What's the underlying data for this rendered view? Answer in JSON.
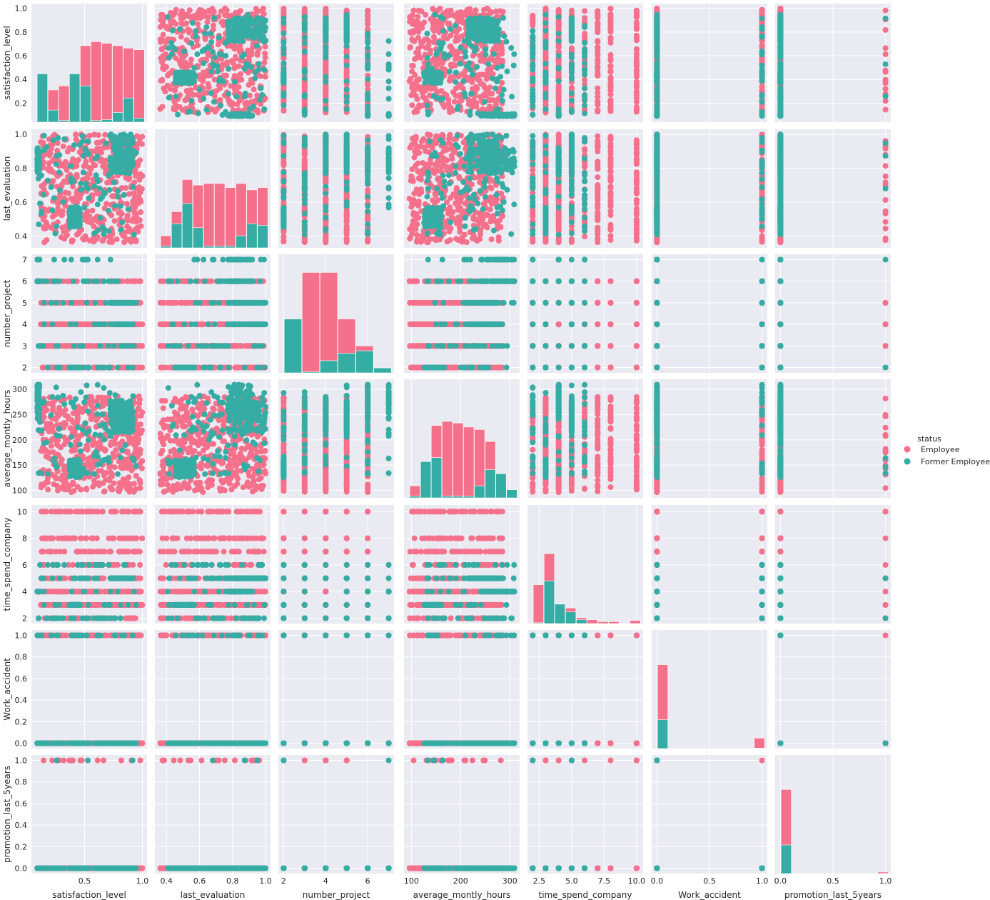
{
  "chart_data": {
    "type": "scatter",
    "kind": "pairplot",
    "title": "",
    "hue_variable": "status",
    "variables": [
      {
        "name": "satisfaction_level",
        "range": [
          0.04,
          1.04
        ],
        "ticks_x": [
          0.5,
          1.0
        ],
        "tick_labels_x": [
          "0.5",
          "1.0"
        ],
        "ticks_y": [
          0.2,
          0.4,
          0.6,
          0.8,
          1.0
        ],
        "tick_labels_y": [
          "0.2",
          "0.4",
          "0.6",
          "0.8",
          "1.0"
        ],
        "discrete": false
      },
      {
        "name": "last_evaluation",
        "range": [
          0.33,
          1.03
        ],
        "ticks_x": [
          0.4,
          0.6,
          0.8,
          1.0
        ],
        "tick_labels_x": [
          "0.4",
          "0.6",
          "0.8",
          "1.0"
        ],
        "ticks_y": [
          0.4,
          0.6,
          0.8,
          1.0
        ],
        "tick_labels_y": [
          "0.4",
          "0.6",
          "0.8",
          "1.0"
        ],
        "discrete": false
      },
      {
        "name": "number_project",
        "range": [
          1.75,
          7.25
        ],
        "ticks_x": [
          2,
          4,
          6
        ],
        "tick_labels_x": [
          "2",
          "4",
          "6"
        ],
        "ticks_y": [
          2,
          3,
          4,
          5,
          6,
          7
        ],
        "tick_labels_y": [
          "2",
          "3",
          "4",
          "5",
          "6",
          "7"
        ],
        "discrete": true,
        "levels": [
          2,
          3,
          4,
          5,
          6,
          7
        ]
      },
      {
        "name": "average_montly_hours",
        "range": [
          85,
          320
        ],
        "ticks_x": [
          100,
          200,
          300
        ],
        "tick_labels_x": [
          "100",
          "200",
          "300"
        ],
        "ticks_y": [
          100,
          150,
          200,
          250,
          300
        ],
        "tick_labels_y": [
          "100",
          "150",
          "200",
          "250",
          "300"
        ],
        "discrete": false
      },
      {
        "name": "time_spend_company",
        "range": [
          1.6,
          10.5
        ],
        "ticks_x": [
          2.5,
          5.0,
          7.5,
          10.0
        ],
        "tick_labels_x": [
          "2.5",
          "5.0",
          "7.5",
          "10.0"
        ],
        "ticks_y": [
          2,
          4,
          6,
          8,
          10
        ],
        "tick_labels_y": [
          "2",
          "4",
          "6",
          "8",
          "10"
        ],
        "discrete": true,
        "levels": [
          2,
          3,
          4,
          5,
          6,
          7,
          8,
          10
        ]
      },
      {
        "name": "Work_accident",
        "range": [
          -0.05,
          1.05
        ],
        "ticks_x": [
          0.0,
          0.5,
          1.0
        ],
        "tick_labels_x": [
          "0.0",
          "0.5",
          "1.0"
        ],
        "ticks_y": [
          0.0,
          0.2,
          0.4,
          0.6,
          0.8,
          1.0
        ],
        "tick_labels_y": [
          "0.0",
          "0.2",
          "0.4",
          "0.6",
          "0.8",
          "1.0"
        ],
        "discrete": true,
        "levels": [
          0,
          1
        ]
      },
      {
        "name": "promotion_last_5years",
        "range": [
          -0.05,
          1.05
        ],
        "ticks_x": [
          0.0,
          0.5,
          1.0
        ],
        "tick_labels_x": [
          "0.0",
          "0.5",
          "1.0"
        ],
        "ticks_y": [
          0.0,
          0.2,
          0.4,
          0.6,
          0.8,
          1.0
        ],
        "tick_labels_y": [
          "0.0",
          "0.2",
          "0.4",
          "0.6",
          "0.8",
          "1.0"
        ],
        "discrete": true,
        "levels": [
          0,
          1
        ]
      }
    ],
    "series": [
      {
        "name": "Employee",
        "color": "#f5708a"
      },
      {
        "name": "Former Employee",
        "color": "#36ada4"
      }
    ],
    "clusters": {
      "Employee": {
        "satisfaction_level": [
          0.12,
          1.0
        ],
        "last_evaluation": [
          0.36,
          1.0
        ],
        "average_montly_hours": [
          96,
          287
        ],
        "time_spend_company": [
          2,
          10
        ]
      },
      "Former Employee": [
        {
          "satisfaction_level": [
            0.37,
            0.46
          ],
          "last_evaluation": [
            0.45,
            0.57
          ],
          "average_montly_hours": [
            126,
            161
          ],
          "number_project": 2,
          "time_spend_company": 3
        },
        {
          "satisfaction_level": [
            0.72,
            0.92
          ],
          "last_evaluation": [
            0.77,
            1.0
          ],
          "average_montly_hours": [
            215,
            278
          ],
          "number_project": [
            4,
            5
          ],
          "time_spend_company": 5
        },
        {
          "satisfaction_level": [
            0.09,
            0.11
          ],
          "last_evaluation": [
            0.77,
            0.92
          ],
          "average_montly_hours": [
            240,
            310
          ],
          "number_project": [
            6,
            7
          ],
          "time_spend_company": 4
        }
      ]
    },
    "histograms": {
      "satisfaction_level": {
        "Employee": [
          0.3,
          0.4,
          0.45,
          0.55,
          0.95,
          1.0,
          0.98,
          0.95,
          0.92,
          0.9
        ],
        "Former Employee": [
          0.6,
          0.15,
          0.02,
          0.6,
          0.45,
          0.02,
          0.03,
          0.12,
          0.3,
          0.05
        ]
      },
      "last_evaluation": {
        "Employee": [
          0.15,
          0.45,
          0.85,
          0.78,
          0.8,
          0.8,
          0.75,
          0.8,
          0.72,
          0.75
        ],
        "Former Employee": [
          0.02,
          0.3,
          0.55,
          0.25,
          0.02,
          0.02,
          0.02,
          0.15,
          0.3,
          0.28
        ]
      },
      "number_project": {
        "Employee": [
          0.5,
          2.05,
          2.05,
          1.1,
          0.55,
          0.0
        ],
        "Former Employee": [
          1.1,
          0.02,
          0.25,
          0.4,
          0.45,
          0.1
        ]
      },
      "average_montly_hours": {
        "Employee": [
          0.15,
          0.45,
          0.9,
          0.95,
          0.93,
          0.88,
          0.85,
          0.7,
          0.3,
          0.02
        ],
        "Former Employee": [
          0.02,
          0.45,
          0.5,
          0.02,
          0.02,
          0.02,
          0.15,
          0.35,
          0.3,
          0.1
        ]
      },
      "time_spend_company": {
        "Employee": [
          1.0,
          1.8,
          0.5,
          0.4,
          0.15,
          0.1,
          0.05,
          0.05,
          0.0,
          0.08
        ],
        "Former Employee": [
          0.02,
          1.1,
          0.5,
          0.3,
          0.1,
          0.0,
          0.0,
          0.0,
          0.0,
          0.0
        ]
      },
      "Work_accident": {
        "Employee": [
          1.6,
          0,
          0,
          0,
          0,
          0,
          0,
          0,
          0,
          0.2
        ],
        "Former Employee": [
          0.55,
          0,
          0,
          0,
          0,
          0,
          0,
          0,
          0,
          0.01
        ]
      },
      "promotion_last_5years": {
        "Employee": [
          1.65,
          0,
          0,
          0,
          0,
          0,
          0,
          0,
          0,
          0.03
        ],
        "Former Employee": [
          0.56,
          0,
          0,
          0,
          0,
          0,
          0,
          0,
          0,
          0.0
        ]
      }
    },
    "grid": true,
    "legend": {
      "title": "status",
      "placement": "right",
      "entries": [
        "Employee",
        "Former Employee"
      ]
    }
  }
}
